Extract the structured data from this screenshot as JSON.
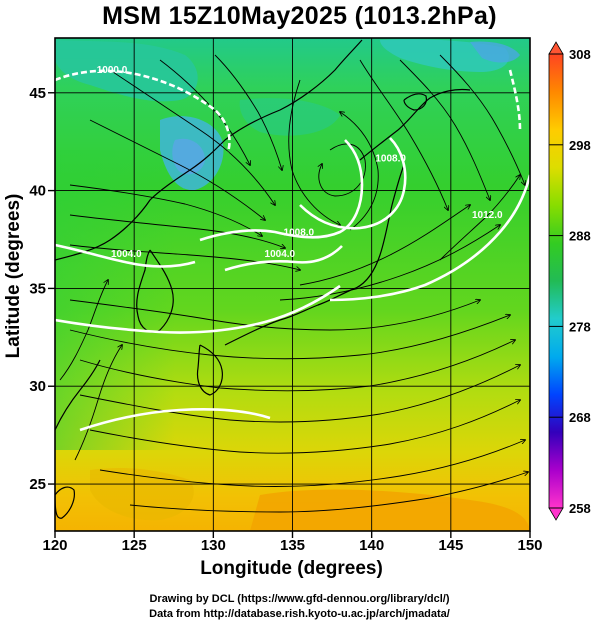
{
  "title": "MSM 15Z10May2025 (1013.2hPa)",
  "x_axis": {
    "label": "Longitude (degrees)",
    "range": [
      120,
      150
    ],
    "ticks": [
      {
        "value": 120,
        "label": "120"
      },
      {
        "value": 125,
        "label": "125"
      },
      {
        "value": 130,
        "label": "130"
      },
      {
        "value": 135,
        "label": "135"
      },
      {
        "value": 140,
        "label": "140"
      },
      {
        "value": 145,
        "label": "145"
      },
      {
        "value": 150,
        "label": "150"
      }
    ]
  },
  "y_axis": {
    "label": "Latitude  (degrees)",
    "range": [
      22.6,
      47.8
    ],
    "ticks": [
      {
        "value": 25,
        "label": "25"
      },
      {
        "value": 30,
        "label": "30"
      },
      {
        "value": 35,
        "label": "35"
      },
      {
        "value": 40,
        "label": "40"
      },
      {
        "value": 45,
        "label": "45"
      }
    ]
  },
  "colorbar": {
    "range": [
      258,
      308
    ],
    "labels": [
      {
        "value": 308,
        "label": "308"
      },
      {
        "value": 298,
        "label": "298"
      },
      {
        "value": 288,
        "label": "288"
      },
      {
        "value": 278,
        "label": "278"
      },
      {
        "value": 268,
        "label": "268"
      },
      {
        "value": 258,
        "label": "258"
      }
    ],
    "stops": [
      "#ff33cc",
      "#aa00cc",
      "#3300bb",
      "#0044ff",
      "#00aaee",
      "#22cccc",
      "#22bb55",
      "#33cc22",
      "#88dd00",
      "#dddd00",
      "#ffcc00",
      "#ff8800",
      "#ff4422"
    ]
  },
  "pressure_contours": [
    {
      "label": "1000.0",
      "lon": 123.6,
      "lat": 46.0
    },
    {
      "label": "1004.0",
      "lon": 124.5,
      "lat": 36.6
    },
    {
      "label": "1004.0",
      "lon": 134.2,
      "lat": 36.6
    },
    {
      "label": "1008.0",
      "lon": 135.4,
      "lat": 37.7
    },
    {
      "label": "1008.0",
      "lon": 141.2,
      "lat": 41.5
    },
    {
      "label": "1012.0",
      "lon": 147.3,
      "lat": 38.6
    }
  ],
  "credits": {
    "line1": "Drawing by DCL (https://www.gfd-dennou.org/library/dcl/)",
    "line2": "Data from http://database.rish.kyoto-u.ac.jp/arch/jmadata/"
  }
}
